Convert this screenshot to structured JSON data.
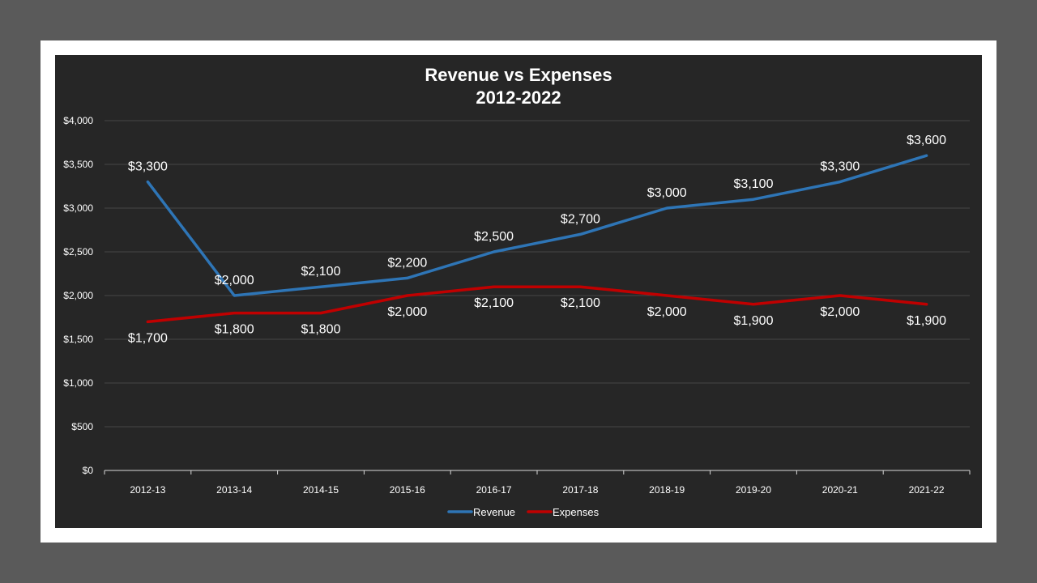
{
  "chart_data": {
    "type": "line",
    "title": "Revenue vs Expenses",
    "subtitle": "2012-2022",
    "categories": [
      "2012-13",
      "2013-14",
      "2014-15",
      "2015-16",
      "2016-17",
      "2017-18",
      "2018-19",
      "2019-20",
      "2020-21",
      "2021-22"
    ],
    "yticks": [
      "$0",
      "$500",
      "$1,000",
      "$1,500",
      "$2,000",
      "$2,500",
      "$3,000",
      "$3,500",
      "$4,000"
    ],
    "ylim": [
      0,
      4000
    ],
    "grid": true,
    "legend_position": "bottom",
    "series": [
      {
        "name": "Revenue",
        "color": "#2e75b6",
        "values": [
          3300,
          2000,
          2100,
          2200,
          2500,
          2700,
          3000,
          3100,
          3300,
          3600
        ],
        "labels": [
          "$3,300",
          "$2,000",
          "$2,100",
          "$2,200",
          "$2,500",
          "$2,700",
          "$3,000",
          "$3,100",
          "$3,300",
          "$3,600"
        ],
        "label_side": "above"
      },
      {
        "name": "Expenses",
        "color": "#c00000",
        "values": [
          1700,
          1800,
          1800,
          2000,
          2100,
          2100,
          2000,
          1900,
          2000,
          1900
        ],
        "labels": [
          "$1,700",
          "$1,800",
          "$1,800",
          "$2,000",
          "$2,100",
          "$2,100",
          "$2,000",
          "$1,900",
          "$2,000",
          "$1,900"
        ],
        "label_side": "below"
      }
    ]
  }
}
